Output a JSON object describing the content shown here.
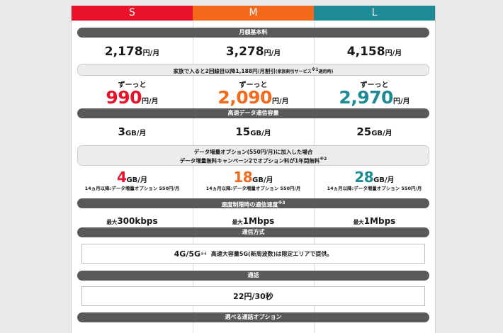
{
  "plans": [
    {
      "name": "S",
      "base_price": "2,178",
      "family_price": "990",
      "data": "3",
      "data_up": "4",
      "speed_prefix": "最大",
      "speed": "300kbps"
    },
    {
      "name": "M",
      "base_price": "3,278",
      "family_price": "2,090",
      "data": "15",
      "data_up": "18",
      "speed_prefix": "最大",
      "speed": "1Mbps"
    },
    {
      "name": "L",
      "base_price": "4,158",
      "family_price": "2,970",
      "data": "25",
      "data_up": "28",
      "speed_prefix": "最大",
      "speed": "1Mbps"
    }
  ],
  "units": {
    "yen_month": "円/月",
    "gb_month": "GB/月"
  },
  "labels": {
    "monthly_base": "月額基本料",
    "family_note": "家族で入ると2回線目以降1,188円/月割引",
    "family_note_small": "(家族割引サービス",
    "family_note_small_mark": "※1",
    "family_note_small_end": "適用時)",
    "zutto": "ずーっと",
    "high_speed_data": "高速データ通信容量",
    "data_up_note_line1": "データ増量オプション(550円/月)に加入した場合",
    "data_up_note_line2": "データ増量無料キャンペーン2でオプション料が1年間無料",
    "data_up_note_mark": "※2",
    "data_up_sub": "14ヵ月以降:データ増量オプション 550円/月",
    "limited_speed": "速度制限時の通信速度",
    "limited_speed_mark": "※3",
    "comm_method": "通信方式",
    "comm_method_value": "4G/5G",
    "comm_method_mark": "※4",
    "comm_method_note": "高速大容量5G(新周波数)は限定エリアで提供。",
    "call": "通話",
    "call_value": "22円/30秒",
    "call_options": "選べる通話オプション"
  },
  "colors": {
    "s": "#e8132b",
    "m": "#f46a1d",
    "l": "#1e8a95",
    "bar": "#595959"
  }
}
